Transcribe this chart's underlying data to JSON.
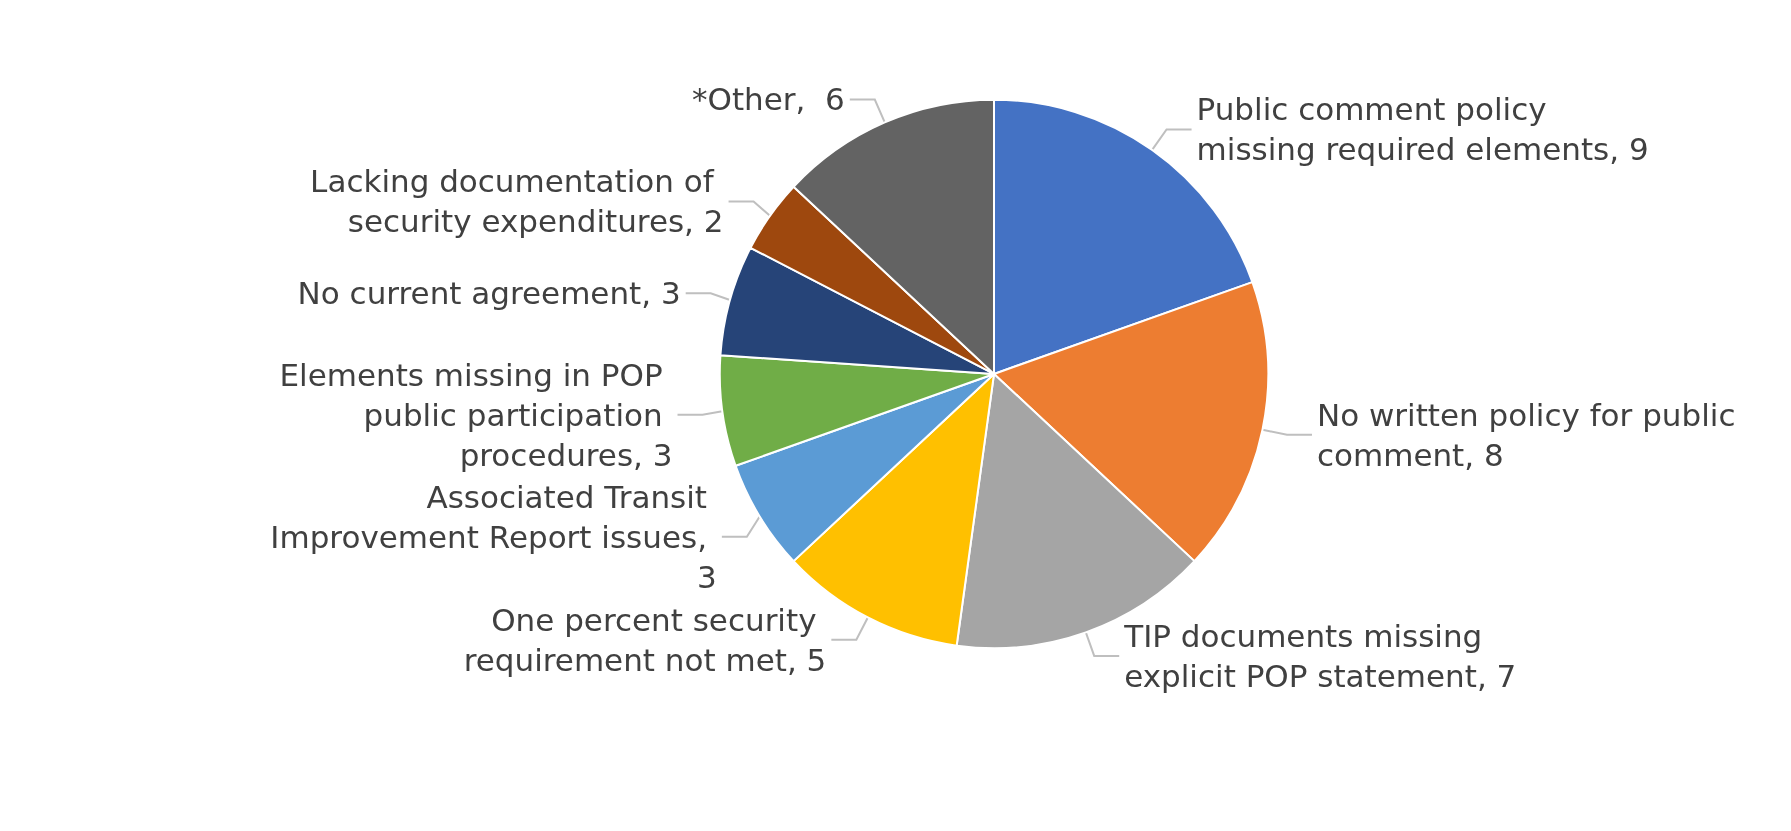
{
  "chart_data": {
    "type": "pie",
    "categories": [
      "Public comment policy missing required elements",
      "No written policy for public comment",
      "TIP documents missing explicit POP statement",
      "One percent security requirement not met",
      "Associated Transit Improvement Report issues",
      "Elements missing in POP public participation procedures",
      "No current agreement",
      "Lacking documentation of security expenditures",
      "*Other"
    ],
    "values": [
      9,
      8,
      7,
      5,
      3,
      3,
      3,
      2,
      6
    ],
    "value_labels": [
      ", 9",
      ", 8",
      ", 7",
      ", 5",
      ", 3",
      ", 3",
      ", 3",
      ", 2",
      ",  6"
    ],
    "colors": [
      "#4472c4",
      "#ed7d31",
      "#a5a5a5",
      "#ffc000",
      "#5b9bd5",
      "#70ad47",
      "#264478",
      "#9e480e",
      "#636363"
    ],
    "legend": false
  }
}
